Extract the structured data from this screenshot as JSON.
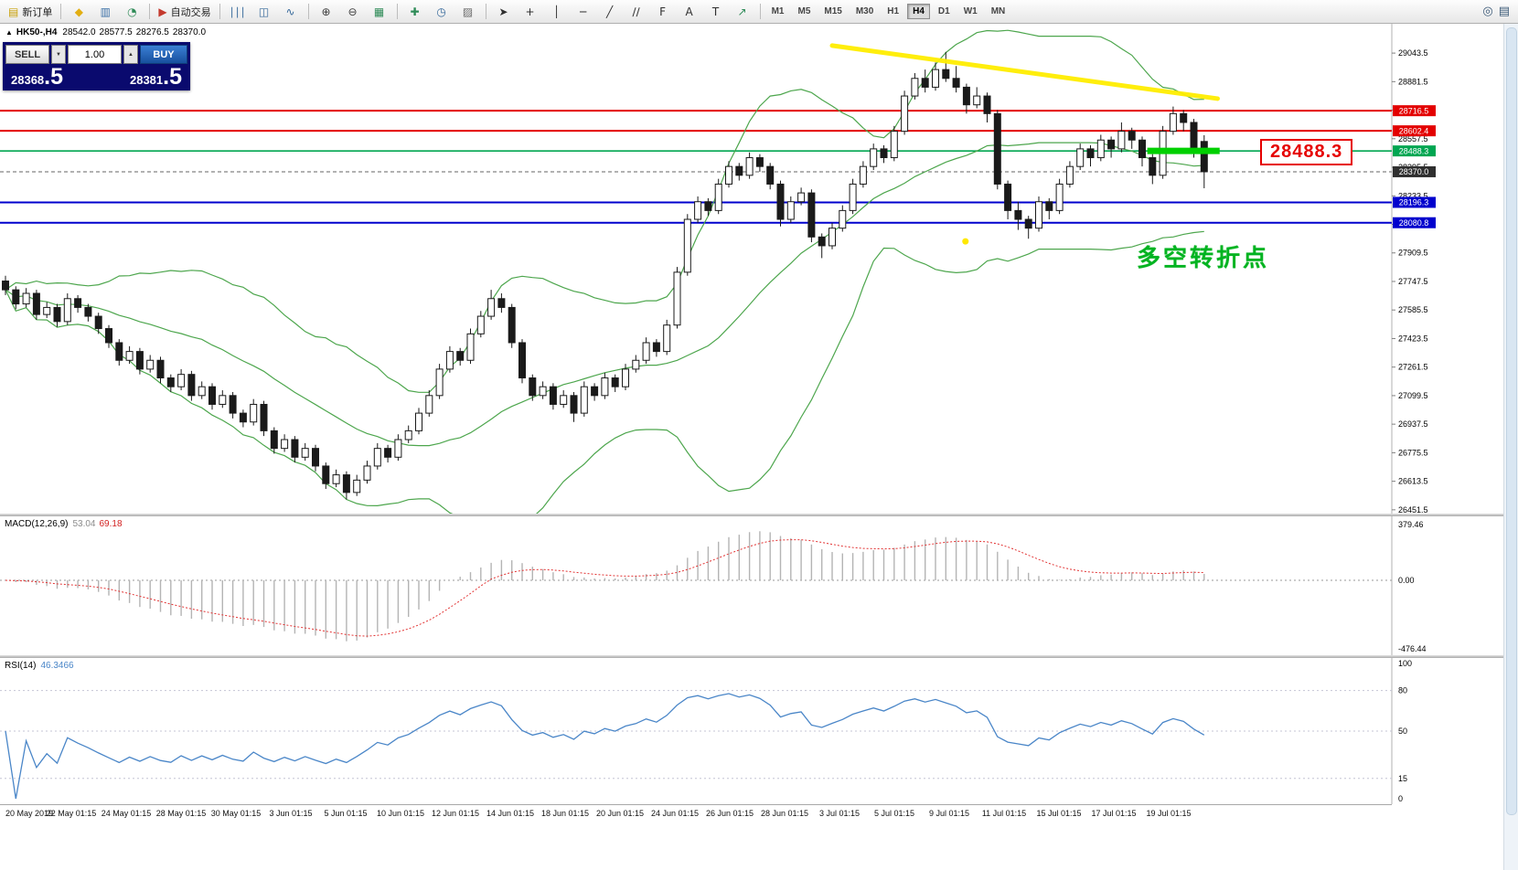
{
  "toolbar": {
    "groups": [
      {
        "name": "order",
        "items": [
          {
            "name": "new-order-button",
            "label": "新订单",
            "glyph": "▤",
            "color": "#c8a008"
          }
        ]
      },
      {
        "name": "panels",
        "items": [
          {
            "name": "metaquotes-icon",
            "glyph": "◆",
            "color": "#e2ae12"
          },
          {
            "name": "market-watch-icon",
            "glyph": "▥",
            "color": "#3a6ea5"
          },
          {
            "name": "data-window-icon",
            "glyph": "◔",
            "color": "#2e8b57"
          }
        ]
      },
      {
        "name": "trading",
        "items": [
          {
            "name": "auto-trading-button",
            "label": "自动交易",
            "glyph": "▶",
            "color": "#c43a2e"
          }
        ]
      },
      {
        "name": "chart-type",
        "items": [
          {
            "name": "bar-chart-icon",
            "glyph": "∣∣∣",
            "color": "#35689a"
          },
          {
            "name": "candlestick-chart-icon",
            "glyph": "◫",
            "color": "#35689a"
          },
          {
            "name": "line-chart-icon",
            "glyph": "∿",
            "color": "#35689a"
          }
        ]
      },
      {
        "name": "zoom",
        "items": [
          {
            "name": "zoom-in-icon",
            "glyph": "⊕",
            "color": "#3c3c3c"
          },
          {
            "name": "zoom-out-icon",
            "glyph": "⊖",
            "color": "#3c3c3c"
          },
          {
            "name": "tile-windows-icon",
            "glyph": "▦",
            "color": "#2e8b57"
          }
        ]
      },
      {
        "name": "chart-tools",
        "items": [
          {
            "name": "indicators-icon",
            "glyph": "✚",
            "color": "#2e8b57"
          },
          {
            "name": "periods-icon",
            "glyph": "◷",
            "color": "#35689a"
          },
          {
            "name": "templates-icon",
            "glyph": "▨",
            "color": "#6a6a6a"
          }
        ]
      },
      {
        "name": "draw-tools",
        "items": [
          {
            "name": "cursor-icon",
            "glyph": "➤",
            "color": "#2f2f2f"
          },
          {
            "name": "crosshair-icon",
            "glyph": "+",
            "color": "#2f2f2f"
          },
          {
            "name": "vertical-line-icon",
            "glyph": "│",
            "color": "#2f2f2f"
          },
          {
            "name": "horizontal-line-icon",
            "glyph": "─",
            "color": "#2f2f2f"
          },
          {
            "name": "trendline-icon",
            "glyph": "╱",
            "color": "#2f2f2f"
          },
          {
            "name": "channel-icon",
            "glyph": "∕∕",
            "color": "#2f2f2f"
          },
          {
            "name": "fibonacci-icon",
            "glyph": "F",
            "color": "#2f2f2f"
          },
          {
            "name": "text-icon",
            "glyph": "A",
            "color": "#2f2f2f"
          },
          {
            "name": "label-icon",
            "glyph": "T",
            "color": "#2f2f2f"
          },
          {
            "name": "arrows-icon",
            "glyph": "↗",
            "color": "#2e8b57"
          }
        ]
      }
    ],
    "timeframes": {
      "items": [
        "M1",
        "M5",
        "M15",
        "M30",
        "H1",
        "H4",
        "D1",
        "W1",
        "MN"
      ],
      "active": "H4"
    },
    "right_icons": [
      {
        "name": "search-icon",
        "glyph": "◎",
        "color": "#3c5a78"
      },
      {
        "name": "print-icon",
        "glyph": "▤",
        "color": "#3c5a78"
      }
    ]
  },
  "chart_header": {
    "symbol_period": "HK50-,H4",
    "open": "28542.0",
    "high": "28577.5",
    "low": "28276.5",
    "close": "28370.0"
  },
  "trade_panel": {
    "sell_label": "SELL",
    "buy_label": "BUY",
    "volume": "1.00",
    "spin_up": "▲",
    "spin_down": "▼",
    "sell_price_main": "28368",
    "sell_price_frac": ".5",
    "buy_price_main": "28381",
    "buy_price_frac": ".5"
  },
  "annotations": {
    "turning_point": "多空转折点",
    "price_callout": "28488.3"
  },
  "macd": {
    "label": "MACD(12,26,9)",
    "main_value": "53.04",
    "signal_value": "69.18",
    "scale_top": "379.46",
    "scale_zero": "0.00",
    "scale_bottom": "-476.44"
  },
  "rsi": {
    "label": "RSI(14)",
    "value": "46.3466",
    "scale": [
      "100",
      "80",
      "50",
      "15",
      "0"
    ],
    "levels": [
      80,
      50,
      15
    ]
  },
  "icons": {
    "collapse_arrow": "▲"
  },
  "time_axis": [
    "20 May 2019",
    "22 May 01:15",
    "24 May 01:15",
    "28 May 01:15",
    "30 May 01:15",
    "3 Jun 01:15",
    "5 Jun 01:15",
    "10 Jun 01:15",
    "12 Jun 01:15",
    "14 Jun 01:15",
    "18 Jun 01:15",
    "20 Jun 01:15",
    "24 Jun 01:15",
    "26 Jun 01:15",
    "28 Jun 01:15",
    "3 Jul 01:15",
    "5 Jul 01:15",
    "9 Jul 01:15",
    "11 Jul 01:15",
    "15 Jul 01:15",
    "17 Jul 01:15",
    "19 Jul 01:15"
  ],
  "chart_data": {
    "type": "candlestick",
    "symbol": "HK50-",
    "timeframe": "H4",
    "ohlc_current": {
      "open": 28542.0,
      "high": 28577.5,
      "low": 28276.5,
      "close": 28370.0
    },
    "ylim": [
      26430,
      29210
    ],
    "price_ticks": [
      29043.5,
      28881.5,
      28719.5,
      28557.5,
      28395.5,
      28233.5,
      28071.5,
      27909.5,
      27747.5,
      27585.5,
      27423.5,
      27261.5,
      27099.5,
      26937.5,
      26775.5,
      26613.5,
      26451.5
    ],
    "candles": [
      [
        27750,
        27780,
        27670,
        27700
      ],
      [
        27700,
        27720,
        27590,
        27620
      ],
      [
        27620,
        27710,
        27600,
        27680
      ],
      [
        27680,
        27700,
        27530,
        27560
      ],
      [
        27560,
        27630,
        27540,
        27600
      ],
      [
        27600,
        27620,
        27490,
        27520
      ],
      [
        27520,
        27680,
        27500,
        27650
      ],
      [
        27650,
        27670,
        27570,
        27600
      ],
      [
        27600,
        27620,
        27520,
        27550
      ],
      [
        27550,
        27570,
        27450,
        27480
      ],
      [
        27480,
        27500,
        27370,
        27400
      ],
      [
        27400,
        27420,
        27270,
        27300
      ],
      [
        27300,
        27380,
        27280,
        27350
      ],
      [
        27350,
        27370,
        27220,
        27250
      ],
      [
        27250,
        27330,
        27230,
        27300
      ],
      [
        27300,
        27320,
        27170,
        27200
      ],
      [
        27200,
        27220,
        27120,
        27150
      ],
      [
        27150,
        27250,
        27130,
        27220
      ],
      [
        27220,
        27240,
        27070,
        27100
      ],
      [
        27100,
        27180,
        27080,
        27150
      ],
      [
        27150,
        27170,
        27020,
        27050
      ],
      [
        27050,
        27130,
        27030,
        27100
      ],
      [
        27100,
        27120,
        26970,
        27000
      ],
      [
        27000,
        27020,
        26920,
        26950
      ],
      [
        26950,
        27080,
        26930,
        27050
      ],
      [
        27050,
        27070,
        26870,
        26900
      ],
      [
        26900,
        26920,
        26770,
        26800
      ],
      [
        26800,
        26880,
        26780,
        26850
      ],
      [
        26850,
        26870,
        26720,
        26750
      ],
      [
        26750,
        26830,
        26730,
        26800
      ],
      [
        26800,
        26820,
        26670,
        26700
      ],
      [
        26700,
        26720,
        26570,
        26600
      ],
      [
        26600,
        26680,
        26580,
        26650
      ],
      [
        26650,
        26670,
        26510,
        26550
      ],
      [
        26550,
        26650,
        26530,
        26620
      ],
      [
        26620,
        26730,
        26600,
        26700
      ],
      [
        26700,
        26830,
        26680,
        26800
      ],
      [
        26800,
        26820,
        26720,
        26750
      ],
      [
        26750,
        26880,
        26730,
        26850
      ],
      [
        26850,
        26930,
        26830,
        26900
      ],
      [
        26900,
        27030,
        26880,
        27000
      ],
      [
        27000,
        27130,
        26980,
        27100
      ],
      [
        27100,
        27280,
        27080,
        27250
      ],
      [
        27250,
        27380,
        27230,
        27350
      ],
      [
        27350,
        27370,
        27270,
        27300
      ],
      [
        27300,
        27480,
        27280,
        27450
      ],
      [
        27450,
        27580,
        27430,
        27550
      ],
      [
        27550,
        27700,
        27530,
        27650
      ],
      [
        27650,
        27680,
        27570,
        27600
      ],
      [
        27600,
        27620,
        27370,
        27400
      ],
      [
        27400,
        27420,
        27170,
        27200
      ],
      [
        27200,
        27220,
        27070,
        27100
      ],
      [
        27100,
        27180,
        27080,
        27150
      ],
      [
        27150,
        27170,
        27020,
        27050
      ],
      [
        27050,
        27130,
        27030,
        27100
      ],
      [
        27100,
        27120,
        26950,
        27000
      ],
      [
        27000,
        27180,
        26980,
        27150
      ],
      [
        27150,
        27170,
        27070,
        27100
      ],
      [
        27100,
        27230,
        27080,
        27200
      ],
      [
        27200,
        27220,
        27120,
        27150
      ],
      [
        27150,
        27280,
        27130,
        27250
      ],
      [
        27250,
        27330,
        27230,
        27300
      ],
      [
        27300,
        27430,
        27280,
        27400
      ],
      [
        27400,
        27420,
        27320,
        27350
      ],
      [
        27350,
        27530,
        27330,
        27500
      ],
      [
        27500,
        27830,
        27480,
        27800
      ],
      [
        27800,
        28130,
        27780,
        28100
      ],
      [
        28100,
        28230,
        28080,
        28200
      ],
      [
        28200,
        28220,
        28120,
        28150
      ],
      [
        28150,
        28330,
        28130,
        28300
      ],
      [
        28300,
        28430,
        28280,
        28400
      ],
      [
        28400,
        28420,
        28320,
        28350
      ],
      [
        28350,
        28480,
        28330,
        28450
      ],
      [
        28450,
        28470,
        28370,
        28400
      ],
      [
        28400,
        28420,
        28270,
        28300
      ],
      [
        28300,
        28320,
        28060,
        28100
      ],
      [
        28100,
        28230,
        28080,
        28200
      ],
      [
        28200,
        28280,
        28180,
        28250
      ],
      [
        28250,
        28270,
        27970,
        28000
      ],
      [
        28000,
        28020,
        27880,
        27950
      ],
      [
        27950,
        28080,
        27930,
        28050
      ],
      [
        28050,
        28180,
        28030,
        28150
      ],
      [
        28150,
        28330,
        28130,
        28300
      ],
      [
        28300,
        28430,
        28280,
        28400
      ],
      [
        28400,
        28530,
        28380,
        28500
      ],
      [
        28500,
        28520,
        28420,
        28450
      ],
      [
        28450,
        28630,
        28430,
        28600
      ],
      [
        28600,
        28830,
        28580,
        28800
      ],
      [
        28800,
        28930,
        28780,
        28900
      ],
      [
        28900,
        28950,
        28820,
        28850
      ],
      [
        28850,
        28990,
        28830,
        28950
      ],
      [
        28950,
        29050,
        28880,
        28900
      ],
      [
        28900,
        28970,
        28820,
        28850
      ],
      [
        28850,
        28870,
        28700,
        28750
      ],
      [
        28750,
        28850,
        28730,
        28800
      ],
      [
        28800,
        28820,
        28650,
        28700
      ],
      [
        28700,
        28720,
        28270,
        28300
      ],
      [
        28300,
        28320,
        28100,
        28150
      ],
      [
        28150,
        28200,
        28040,
        28100
      ],
      [
        28100,
        28120,
        27990,
        28050
      ],
      [
        28050,
        28230,
        28030,
        28200
      ],
      [
        28200,
        28220,
        28100,
        28150
      ],
      [
        28150,
        28330,
        28130,
        28300
      ],
      [
        28300,
        28430,
        28280,
        28400
      ],
      [
        28400,
        28530,
        28380,
        28500
      ],
      [
        28500,
        28520,
        28400,
        28450
      ],
      [
        28450,
        28580,
        28430,
        28550
      ],
      [
        28550,
        28570,
        28450,
        28500
      ],
      [
        28500,
        28650,
        28480,
        28600
      ],
      [
        28600,
        28620,
        28500,
        28550
      ],
      [
        28550,
        28570,
        28400,
        28450
      ],
      [
        28450,
        28470,
        28300,
        28350
      ],
      [
        28350,
        28630,
        28330,
        28600
      ],
      [
        28600,
        28740,
        28580,
        28700
      ],
      [
        28700,
        28720,
        28600,
        28650
      ],
      [
        28650,
        28670,
        28450,
        28500
      ],
      [
        28542,
        28577.5,
        28276.5,
        28370
      ]
    ],
    "overlays": {
      "resistance_lines": [
        28716.5,
        28602.4
      ],
      "pivot_line": 28488.3,
      "support_lines": [
        28196.3,
        28080.8
      ],
      "current_price": 28370.0,
      "trendline": {
        "from": {
          "index": 80,
          "price": 29086
        },
        "to": {
          "index": 117.3,
          "price": 28785
        }
      },
      "pivot_highlight": {
        "from_index": 110.5,
        "to_index": 117.5,
        "price": 28488.3
      },
      "yellow_dot": {
        "index": 92.9,
        "price": 27975
      }
    },
    "colors": {
      "bollinger": "#4da64d",
      "bull": "#ffffff",
      "bear": "#1a1a1a",
      "resistance": "#e30000",
      "support": "#0000cd",
      "pivot": "#00a651",
      "current": "#2f2f2f",
      "trendline": "#ffee00",
      "pivot_highlight": "#00d000",
      "yellow_dot": "#ffe800",
      "macd_histogram": "#b4b4b4",
      "macd_signal": "#e23434",
      "rsi": "#4a86c8"
    }
  }
}
